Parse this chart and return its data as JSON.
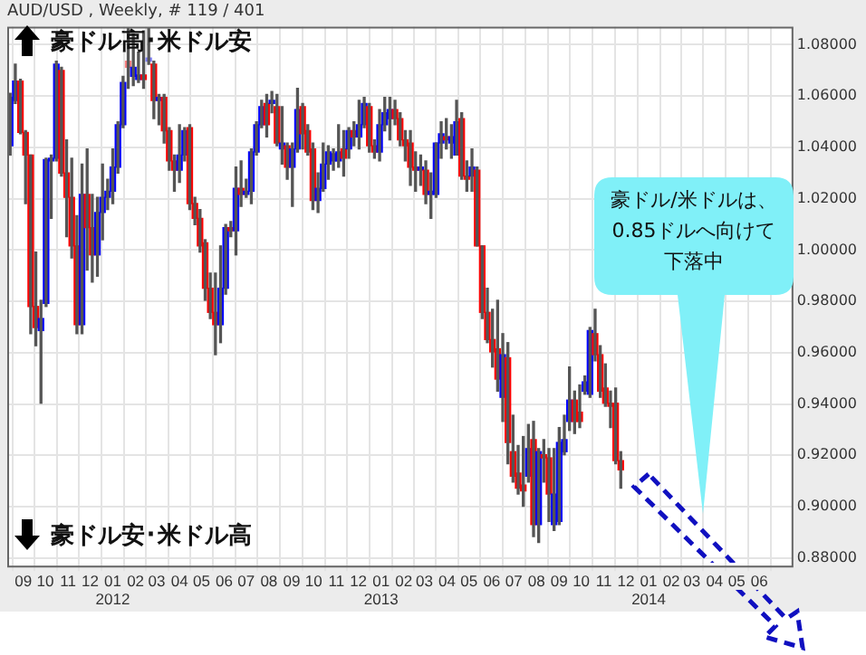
{
  "chart_data": {
    "type": "candlestick",
    "title": "AUD/USD , Weekly, # 119 / 401",
    "annotations": [
      "豪ドル高･米ドル安",
      "豪ドル安･米ドル高",
      "豪ドル/米ドルは、0.85ドルへ向けて下落中"
    ],
    "x": [
      "2011-08-14",
      "2011-08-21",
      "2011-08-28",
      "2011-09-04",
      "2011-09-11",
      "2011-09-18",
      "2011-09-25",
      "2011-10-02",
      "2011-10-09",
      "2011-10-16",
      "2011-10-23",
      "2011-10-30",
      "2011-11-06",
      "2011-11-13",
      "2011-11-20",
      "2011-11-27",
      "2011-12-04",
      "2011-12-11",
      "2011-12-18",
      "2011-12-25",
      "2012-01-01",
      "2012-01-08",
      "2012-01-15",
      "2012-01-22",
      "2012-01-29",
      "2012-02-05",
      "2012-02-12",
      "2012-02-19",
      "2012-02-26",
      "2012-03-04",
      "2012-03-11",
      "2012-03-18",
      "2012-03-25",
      "2012-04-01",
      "2012-04-08",
      "2012-04-15",
      "2012-04-22",
      "2012-04-29",
      "2012-05-06",
      "2012-05-13",
      "2012-05-20",
      "2012-05-27",
      "2012-06-03",
      "2012-06-10",
      "2012-06-17",
      "2012-06-24",
      "2012-07-01",
      "2012-07-08",
      "2012-07-15",
      "2012-07-22",
      "2012-07-29",
      "2012-08-05",
      "2012-08-12",
      "2012-08-19",
      "2012-08-26",
      "2012-09-02",
      "2012-09-09",
      "2012-09-16",
      "2012-09-23",
      "2012-09-30",
      "2012-10-07",
      "2012-10-14",
      "2012-10-21",
      "2012-10-28",
      "2012-11-04",
      "2012-11-11",
      "2012-11-18",
      "2012-11-25",
      "2012-12-02",
      "2012-12-09",
      "2012-12-16",
      "2012-12-23",
      "2012-12-30",
      "2013-01-06",
      "2013-01-13",
      "2013-01-20",
      "2013-01-27",
      "2013-02-03",
      "2013-02-10",
      "2013-02-17",
      "2013-02-24",
      "2013-03-03",
      "2013-03-10",
      "2013-03-17",
      "2013-03-24",
      "2013-03-31",
      "2013-04-07",
      "2013-04-14",
      "2013-04-21",
      "2013-04-28",
      "2013-05-05",
      "2013-05-12",
      "2013-05-19",
      "2013-05-26",
      "2013-06-02",
      "2013-06-09",
      "2013-06-16",
      "2013-06-23",
      "2013-06-30",
      "2013-07-07",
      "2013-07-14",
      "2013-07-21",
      "2013-07-28",
      "2013-08-04",
      "2013-08-11",
      "2013-08-18",
      "2013-08-25",
      "2013-09-01",
      "2013-09-08",
      "2013-09-15",
      "2013-09-22",
      "2013-09-29",
      "2013-10-06",
      "2013-10-13",
      "2013-10-20",
      "2013-10-27",
      "2013-11-03",
      "2013-11-10",
      "2013-11-17",
      "2013-11-24"
    ],
    "ohlc": [
      [
        1.0406,
        1.0611,
        1.037,
        1.0595
      ],
      [
        1.0583,
        1.0724,
        1.0571,
        1.0658
      ],
      [
        1.0658,
        1.0665,
        1.0453,
        1.0458
      ],
      [
        1.0458,
        1.0465,
        1.0181,
        1.037
      ],
      [
        1.037,
        1.037,
        0.9674,
        0.978
      ],
      [
        0.978,
        0.9992,
        0.9627,
        0.9698
      ],
      [
        0.9686,
        0.9804,
        0.9403,
        0.9733
      ],
      [
        0.9792,
        1.0358,
        0.978,
        1.0352
      ],
      [
        1.0347,
        1.037,
        1.0123,
        1.0358
      ],
      [
        1.0358,
        1.0736,
        1.0347,
        1.0724
      ],
      [
        1.07,
        1.0712,
        1.0288,
        1.03
      ],
      [
        1.03,
        1.0429,
        1.0052,
        1.0205
      ],
      [
        1.0205,
        1.0358,
        0.9969,
        1.0016
      ],
      [
        1.0016,
        1.0134,
        0.9674,
        0.9709
      ],
      [
        0.9709,
        1.0335,
        0.9674,
        1.0217
      ],
      [
        1.0217,
        1.0394,
        0.9922,
        1.0087
      ],
      [
        1.0087,
        1.0217,
        0.9875,
        0.9981
      ],
      [
        0.9981,
        1.0205,
        0.9898,
        1.0146
      ],
      [
        1.0146,
        1.0335,
        1.004,
        1.0205
      ],
      [
        1.0205,
        1.0276,
        1.0158,
        1.0229
      ],
      [
        1.0229,
        1.0394,
        1.0181,
        1.0323
      ],
      [
        1.0323,
        1.05,
        1.03,
        1.0488
      ],
      [
        1.0488,
        1.0677,
        1.0477,
        1.0653
      ],
      [
        1.0736,
        1.0866,
        1.063,
        1.0712
      ],
      [
        1.0677,
        1.0842,
        1.0641,
        1.0712
      ],
      [
        1.0665,
        1.0771,
        1.0653,
        1.0682
      ],
      [
        1.0682,
        1.0854,
        1.063,
        1.0665
      ],
      [
        1.0736,
        1.0866,
        1.0724,
        1.0748
      ],
      [
        1.0724,
        1.0736,
        1.0512,
        1.0583
      ],
      [
        1.0583,
        1.0606,
        1.0488,
        1.0595
      ],
      [
        1.0595,
        1.0606,
        1.0417,
        1.0465
      ],
      [
        1.0465,
        1.0477,
        1.0311,
        1.0347
      ],
      [
        1.0347,
        1.037,
        1.0229,
        1.0311
      ],
      [
        1.0311,
        1.0488,
        1.0264,
        1.037
      ],
      [
        1.037,
        1.0477,
        1.0347,
        1.0465
      ],
      [
        1.0477,
        1.0488,
        1.0158,
        1.0181
      ],
      [
        1.0181,
        1.0205,
        1.0099,
        1.0123
      ],
      [
        1.0123,
        1.0158,
        0.9992,
        1.0016
      ],
      [
        1.0028,
        1.004,
        0.9804,
        0.9851
      ],
      [
        0.9851,
        0.991,
        0.9733,
        0.9757
      ],
      [
        0.9757,
        0.991,
        0.9592,
        0.9709
      ],
      [
        0.9709,
        1.0016,
        0.9639,
        0.9851
      ],
      [
        0.9851,
        1.0099,
        0.9828,
        1.0087
      ],
      [
        1.0087,
        1.0111,
        1.0052,
        1.0075
      ],
      [
        1.0075,
        1.0323,
        0.9981,
        1.024
      ],
      [
        1.024,
        1.0347,
        1.017,
        1.0217
      ],
      [
        1.0217,
        1.0276,
        1.0205,
        1.0229
      ],
      [
        1.0229,
        1.0394,
        1.0181,
        1.0382
      ],
      [
        1.0382,
        1.05,
        1.037,
        1.0488
      ],
      [
        1.0488,
        1.0583,
        1.0477,
        1.0559
      ],
      [
        1.0571,
        1.0606,
        1.0441,
        1.0488
      ],
      [
        1.0571,
        1.0618,
        1.0535,
        1.0583
      ],
      [
        1.0559,
        1.0606,
        1.0406,
        1.0417
      ],
      [
        1.0394,
        1.0559,
        1.0335,
        1.0417
      ],
      [
        1.0406,
        1.0417,
        1.0276,
        1.0323
      ],
      [
        1.0323,
        1.0417,
        1.017,
        1.0394
      ],
      [
        1.0394,
        1.063,
        1.0382,
        1.0547
      ],
      [
        1.0559,
        1.0571,
        1.0394,
        1.0453
      ],
      [
        1.0465,
        1.0488,
        1.037,
        1.0382
      ],
      [
        1.0394,
        1.0417,
        1.0158,
        1.0193
      ],
      [
        1.0193,
        1.03,
        1.0146,
        1.024
      ],
      [
        1.024,
        1.0417,
        1.0229,
        1.0335
      ],
      [
        1.0335,
        1.0406,
        1.0276,
        1.0382
      ],
      [
        1.0347,
        1.0394,
        1.0311,
        1.0375
      ],
      [
        1.0347,
        1.0488,
        1.0323,
        1.0382
      ],
      [
        1.0394,
        1.0465,
        1.0288,
        1.0358
      ],
      [
        1.0394,
        1.0477,
        1.0358,
        1.0465
      ],
      [
        1.0465,
        1.05,
        1.0406,
        1.0441
      ],
      [
        1.0441,
        1.0583,
        1.0394,
        1.0488
      ],
      [
        1.0488,
        1.0595,
        1.0477,
        1.0571
      ],
      [
        1.0559,
        1.0571,
        1.0382,
        1.0406
      ],
      [
        1.0406,
        1.0429,
        1.0358,
        1.0382
      ],
      [
        1.0382,
        1.0547,
        1.0347,
        1.0488
      ],
      [
        1.0488,
        1.0595,
        1.0465,
        1.0535
      ],
      [
        1.0512,
        1.0595,
        1.0429,
        1.0547
      ],
      [
        1.0547,
        1.0583,
        1.0488,
        1.0512
      ],
      [
        1.0512,
        1.0535,
        1.0406,
        1.0429
      ],
      [
        1.0429,
        1.0465,
        1.0347,
        1.0406
      ],
      [
        1.0417,
        1.0465,
        1.0252,
        1.0323
      ],
      [
        1.0323,
        1.0382,
        1.0229,
        1.0311
      ],
      [
        1.0311,
        1.037,
        1.0252,
        1.0323
      ],
      [
        1.0311,
        1.0347,
        1.0181,
        1.0217
      ],
      [
        1.0217,
        1.03,
        1.0123,
        1.0229
      ],
      [
        1.0217,
        1.0417,
        1.0205,
        1.0417
      ],
      [
        1.0417,
        1.05,
        1.0358,
        1.0453
      ],
      [
        1.0441,
        1.0512,
        1.0394,
        1.0429
      ],
      [
        1.0417,
        1.0488,
        1.0358,
        1.0441
      ],
      [
        1.037,
        1.0583,
        1.037,
        1.05
      ],
      [
        1.0512,
        1.0535,
        1.0276,
        1.0288
      ],
      [
        1.0288,
        1.0347,
        1.0229,
        1.0276
      ],
      [
        1.0288,
        1.0394,
        1.0229,
        1.0323
      ],
      [
        1.0311,
        1.0323,
        1.0016,
        1.0016
      ],
      [
        1.0016,
        1.0016,
        0.9733,
        0.9757
      ],
      [
        0.9757,
        0.9851,
        0.9639,
        0.9651
      ],
      [
        0.9651,
        0.9769,
        0.9544,
        0.9603
      ],
      [
        0.9615,
        0.9804,
        0.945,
        0.9497
      ],
      [
        0.9426,
        0.9674,
        0.9332,
        0.9592
      ],
      [
        0.958,
        0.9639,
        0.9167,
        0.925
      ],
      [
        0.9214,
        0.9356,
        0.9096,
        0.9119
      ],
      [
        0.9131,
        0.9238,
        0.9049,
        0.9072
      ],
      [
        0.9084,
        0.9273,
        0.9001,
        0.9061
      ],
      [
        0.9119,
        0.932,
        0.9096,
        0.9226
      ],
      [
        0.9261,
        0.9332,
        0.8883,
        0.893
      ],
      [
        0.893,
        0.9226,
        0.886,
        0.9214
      ],
      [
        0.9202,
        0.9261,
        0.9096,
        0.919
      ],
      [
        0.919,
        0.9226,
        0.8942,
        0.9049
      ],
      [
        0.893,
        0.9226,
        0.8907,
        0.9049
      ],
      [
        0.8942,
        0.9308,
        0.893,
        0.925
      ],
      [
        0.9214,
        0.9356,
        0.9202,
        0.9261
      ],
      [
        0.9332,
        0.9544,
        0.9297,
        0.9415
      ],
      [
        0.9415,
        0.945,
        0.9285,
        0.9332
      ],
      [
        0.9368,
        0.9474,
        0.9308,
        0.9332
      ],
      [
        0.945,
        0.9509,
        0.9438,
        0.9486
      ],
      [
        0.9438,
        0.9698,
        0.9426,
        0.9686
      ],
      [
        0.9674,
        0.9769,
        0.9568,
        0.9592
      ],
      [
        0.9592,
        0.9627,
        0.9426,
        0.945
      ],
      [
        0.9462,
        0.9556,
        0.9391,
        0.9403
      ],
      [
        0.9403,
        0.945,
        0.9308,
        0.9391
      ],
      [
        0.9403,
        0.9462,
        0.9167,
        0.9179
      ],
      [
        0.9179,
        0.9214,
        0.9072,
        0.9143
      ]
    ],
    "color": "#555555",
    "colors": [
      "#0000ff",
      "#0000ff",
      "#ff0000",
      "#ff0000",
      "#ff0000",
      "#ff0000",
      "#0000ff",
      "#0000ff",
      "#0000ff",
      "#0000ff",
      "#ff0000",
      "#ff0000",
      "#ff0000",
      "#ff0000",
      "#0000ff",
      "#ff0000",
      "#ff0000",
      "#0000ff",
      "#0000ff",
      "#0000ff",
      "#0000ff",
      "#0000ff",
      "#0000ff",
      "#ff8080",
      "#0000ff",
      "#0000ff",
      "#ff0000",
      "#8080ff",
      "#ff0000",
      "#0000ff",
      "#ff0000",
      "#ff0000",
      "#ff0000",
      "#0000ff",
      "#0000ff",
      "#ff0000",
      "#ff0000",
      "#ff0000",
      "#ff0000",
      "#ff0000",
      "#ff0000",
      "#0000ff",
      "#0000ff",
      "#ff0000",
      "#0000ff",
      "#ff0000",
      "#0000ff",
      "#0000ff",
      "#0000ff",
      "#0000ff",
      "#ff0000",
      "#0000ff",
      "#ff0000",
      "#0000ff",
      "#ff0000",
      "#0000ff",
      "#0000ff",
      "#ff0000",
      "#ff0000",
      "#ff0000",
      "#0000ff",
      "#0000ff",
      "#0000ff",
      "#0000ff",
      "#0000ff",
      "#ff0000",
      "#0000ff",
      "#ff0000",
      "#0000ff",
      "#0000ff",
      "#ff0000",
      "#ff0000",
      "#0000ff",
      "#0000ff",
      "#0000ff",
      "#ff0000",
      "#ff0000",
      "#ff0000",
      "#ff0000",
      "#ff0000",
      "#0000ff",
      "#ff0000",
      "#0000ff",
      "#0000ff",
      "#0000ff",
      "#ff0000",
      "#0000ff",
      "#0000ff",
      "#ff0000",
      "#ff0000",
      "#0000ff",
      "#ff0000",
      "#ff0000",
      "#ff0000",
      "#ff0000",
      "#ff0000",
      "#0000ff",
      "#ff0000",
      "#ff0000",
      "#ff0000",
      "#ff0000",
      "#0000ff",
      "#ff0000",
      "#0000ff",
      "#ff0000",
      "#ff0000",
      "#0000ff",
      "#0000ff",
      "#0000ff",
      "#0000ff",
      "#ff0000",
      "#ff0000",
      "#0000ff",
      "#0000ff",
      "#ff0000",
      "#ff0000",
      "#ff0000",
      "#ff0000",
      "#ff0000",
      "#ff0000"
    ],
    "xlim": [
      "2011-08-10",
      "2014-07-15"
    ],
    "xticks": [
      {
        "value": "2011-09-01",
        "label": "09"
      },
      {
        "value": "2011-10-01",
        "label": "10"
      },
      {
        "value": "2011-11-01",
        "label": "11"
      },
      {
        "value": "2011-12-01",
        "label": "12"
      },
      {
        "value": "2012-01-01",
        "label": "01\n2012"
      },
      {
        "value": "2012-02-01",
        "label": "02"
      },
      {
        "value": "2012-03-01",
        "label": "03"
      },
      {
        "value": "2012-04-01",
        "label": "04"
      },
      {
        "value": "2012-05-01",
        "label": "05"
      },
      {
        "value": "2012-06-01",
        "label": "06"
      },
      {
        "value": "2012-07-01",
        "label": "07"
      },
      {
        "value": "2012-08-01",
        "label": "08"
      },
      {
        "value": "2012-09-01",
        "label": "09"
      },
      {
        "value": "2012-10-01",
        "label": "10"
      },
      {
        "value": "2012-11-01",
        "label": "11"
      },
      {
        "value": "2012-12-01",
        "label": "12"
      },
      {
        "value": "2013-01-01",
        "label": "01\n2013"
      },
      {
        "value": "2013-02-01",
        "label": "02"
      },
      {
        "value": "2013-03-01",
        "label": "03"
      },
      {
        "value": "2013-04-01",
        "label": "04"
      },
      {
        "value": "2013-05-01",
        "label": "05"
      },
      {
        "value": "2013-06-01",
        "label": "06"
      },
      {
        "value": "2013-07-01",
        "label": "07"
      },
      {
        "value": "2013-08-01",
        "label": "08"
      },
      {
        "value": "2013-09-01",
        "label": "09"
      },
      {
        "value": "2013-10-01",
        "label": "10"
      },
      {
        "value": "2013-11-01",
        "label": "11"
      },
      {
        "value": "2013-12-01",
        "label": "12"
      },
      {
        "value": "2014-01-01",
        "label": "01\n2014"
      },
      {
        "value": "2014-02-01",
        "label": "02"
      },
      {
        "value": "2014-03-01",
        "label": "03"
      },
      {
        "value": "2014-04-01",
        "label": "04"
      },
      {
        "value": "2014-05-01",
        "label": "05"
      },
      {
        "value": "2014-06-01",
        "label": "06"
      }
    ],
    "ylim": [
      0.877,
      1.087
    ],
    "yticks": [
      {
        "value": 0.88,
        "label": "0.88000"
      },
      {
        "value": 0.9,
        "label": "0.90000"
      },
      {
        "value": 0.92,
        "label": "0.92000"
      },
      {
        "value": 0.94,
        "label": "0.94000"
      },
      {
        "value": 0.96,
        "label": "0.96000"
      },
      {
        "value": 0.98,
        "label": "0.98000"
      },
      {
        "value": 1.0,
        "label": "1.00000"
      },
      {
        "value": 1.02,
        "label": "1.02000"
      },
      {
        "value": 1.04,
        "label": "1.04000"
      },
      {
        "value": 1.06,
        "label": "1.06000"
      },
      {
        "value": 1.08,
        "label": "1.08000"
      }
    ],
    "grid": true,
    "legend": false
  }
}
